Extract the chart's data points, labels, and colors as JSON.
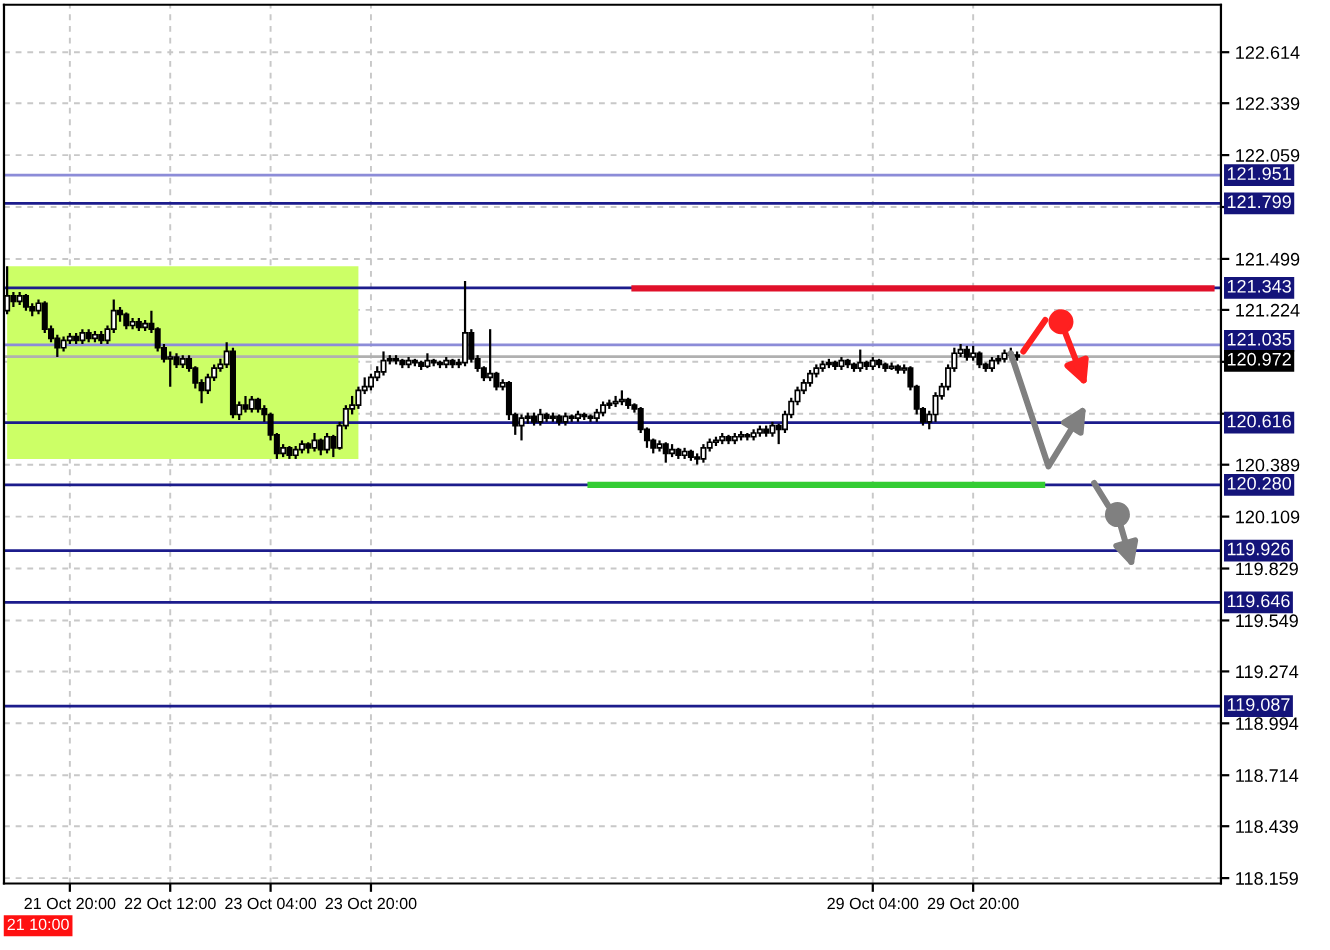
{
  "chart_data": {
    "type": "candlestick",
    "annotations": [
      "21 10:00"
    ],
    "categories": [
      null,
      null,
      null,
      null,
      null,
      null,
      null,
      null,
      null,
      null,
      "21 Oct 20:00",
      null,
      null,
      null,
      null,
      null,
      null,
      null,
      null,
      null,
      null,
      null,
      null,
      null,
      null,
      null,
      "22 Oct 12:00",
      null,
      null,
      null,
      null,
      null,
      null,
      null,
      null,
      null,
      null,
      null,
      null,
      null,
      null,
      null,
      "23 Oct 04:00",
      null,
      null,
      null,
      null,
      null,
      null,
      null,
      null,
      null,
      null,
      null,
      null,
      null,
      null,
      null,
      "23 Oct 20:00",
      null,
      null,
      null,
      null,
      null,
      null,
      null,
      null,
      null,
      null,
      null,
      null,
      null,
      null,
      null,
      null,
      null,
      null,
      null,
      null,
      null,
      null,
      null,
      null,
      null,
      null,
      null,
      null,
      null,
      null,
      null,
      null,
      null,
      null,
      null,
      null,
      null,
      null,
      null,
      null,
      null,
      null,
      null,
      null,
      null,
      null,
      null,
      null,
      null,
      null,
      null,
      null,
      null,
      null,
      null,
      null,
      null,
      null,
      null,
      null,
      null,
      null,
      null,
      null,
      null,
      null,
      null,
      null,
      null,
      null,
      null,
      null,
      null,
      null,
      null,
      null,
      null,
      null,
      null,
      "29 Oct 04:00",
      null,
      null,
      null,
      null,
      null,
      null,
      null,
      null,
      null,
      null,
      null,
      null,
      null,
      null,
      null,
      "29 Oct 20:00",
      null,
      null,
      null,
      null,
      null,
      null,
      null,
      null,
      null,
      null,
      null,
      null,
      null,
      null,
      null,
      null,
      null,
      null,
      null,
      null,
      null,
      null,
      null,
      null,
      null,
      null,
      null,
      null,
      null,
      null,
      null,
      null,
      null,
      null,
      null,
      null,
      null,
      null,
      null
    ],
    "ohlc": [
      [
        121.22,
        121.46,
        121.2,
        121.3
      ],
      [
        121.3,
        121.32,
        121.24,
        121.27
      ],
      [
        121.27,
        121.32,
        121.25,
        121.3
      ],
      [
        121.3,
        121.31,
        121.22,
        121.24
      ],
      [
        121.24,
        121.26,
        121.19,
        121.22
      ],
      [
        121.22,
        121.28,
        121.2,
        121.26
      ],
      [
        121.26,
        121.27,
        121.1,
        121.12
      ],
      [
        121.12,
        121.14,
        121.05,
        121.07
      ],
      [
        121.07,
        121.09,
        120.97,
        121.02
      ],
      [
        121.02,
        121.08,
        121.0,
        121.06
      ],
      [
        121.06,
        121.1,
        121.04,
        121.08
      ],
      [
        121.08,
        121.1,
        121.04,
        121.06
      ],
      [
        121.06,
        121.12,
        121.04,
        121.1
      ],
      [
        121.1,
        121.12,
        121.05,
        121.07
      ],
      [
        121.07,
        121.11,
        121.05,
        121.09
      ],
      [
        121.09,
        121.11,
        121.04,
        121.06
      ],
      [
        121.06,
        121.14,
        121.04,
        121.12
      ],
      [
        121.12,
        121.28,
        121.1,
        121.22
      ],
      [
        121.22,
        121.24,
        121.16,
        121.2
      ],
      [
        121.2,
        121.21,
        121.12,
        121.14
      ],
      [
        121.14,
        121.18,
        121.12,
        121.16
      ],
      [
        121.16,
        121.18,
        121.11,
        121.13
      ],
      [
        121.13,
        121.17,
        121.11,
        121.15
      ],
      [
        121.15,
        121.22,
        121.1,
        121.12
      ],
      [
        121.12,
        121.13,
        121.0,
        121.02
      ],
      [
        121.02,
        121.04,
        120.94,
        120.96
      ],
      [
        120.96,
        121.0,
        120.81,
        120.97
      ],
      [
        120.97,
        120.99,
        120.91,
        120.93
      ],
      [
        120.93,
        120.98,
        120.91,
        120.96
      ],
      [
        120.96,
        120.98,
        120.89,
        120.91
      ],
      [
        120.91,
        120.92,
        120.8,
        120.83
      ],
      [
        120.83,
        120.85,
        120.72,
        120.79
      ],
      [
        120.79,
        120.88,
        120.77,
        120.86
      ],
      [
        120.86,
        120.93,
        120.84,
        120.91
      ],
      [
        120.91,
        120.96,
        120.89,
        120.93
      ],
      [
        120.93,
        121.05,
        120.91,
        121.0
      ],
      [
        121.0,
        121.02,
        120.64,
        120.66
      ],
      [
        120.66,
        120.73,
        120.63,
        120.71
      ],
      [
        120.71,
        120.76,
        120.67,
        120.69
      ],
      [
        120.69,
        120.76,
        120.67,
        120.74
      ],
      [
        120.74,
        120.75,
        120.67,
        120.69
      ],
      [
        120.69,
        120.71,
        120.62,
        120.66
      ],
      [
        120.66,
        120.67,
        120.52,
        120.55
      ],
      [
        120.55,
        120.56,
        120.42,
        120.45
      ],
      [
        120.45,
        120.5,
        120.43,
        120.48
      ],
      [
        120.48,
        120.49,
        120.42,
        120.44
      ],
      [
        120.44,
        120.49,
        120.42,
        120.47
      ],
      [
        120.47,
        120.52,
        120.45,
        120.5
      ],
      [
        120.5,
        120.51,
        120.45,
        120.48
      ],
      [
        120.48,
        120.56,
        120.46,
        120.52
      ],
      [
        120.52,
        120.53,
        120.44,
        120.47
      ],
      [
        120.47,
        120.56,
        120.45,
        120.54
      ],
      [
        120.54,
        120.55,
        120.43,
        120.48
      ],
      [
        120.48,
        120.62,
        120.47,
        120.6
      ],
      [
        120.6,
        120.71,
        120.58,
        120.69
      ],
      [
        120.69,
        120.76,
        120.66,
        120.71
      ],
      [
        120.71,
        120.81,
        120.69,
        120.79
      ],
      [
        120.79,
        120.86,
        120.77,
        120.81
      ],
      [
        120.81,
        120.88,
        120.79,
        120.86
      ],
      [
        120.86,
        120.92,
        120.84,
        120.89
      ],
      [
        120.89,
        121.0,
        120.87,
        120.95
      ],
      [
        120.95,
        120.98,
        120.93,
        120.96
      ],
      [
        120.96,
        120.98,
        120.93,
        120.95
      ],
      [
        120.95,
        120.96,
        120.91,
        120.93
      ],
      [
        120.93,
        120.97,
        120.91,
        120.95
      ],
      [
        120.95,
        120.96,
        120.92,
        120.94
      ],
      [
        120.94,
        120.95,
        120.9,
        120.92
      ],
      [
        120.92,
        120.99,
        120.91,
        120.95
      ],
      [
        120.95,
        120.96,
        120.92,
        120.94
      ],
      [
        120.94,
        120.95,
        120.91,
        120.93
      ],
      [
        120.93,
        120.97,
        120.91,
        120.95
      ],
      [
        120.95,
        120.96,
        120.91,
        120.93
      ],
      [
        120.93,
        120.96,
        120.91,
        120.94
      ],
      [
        120.94,
        121.38,
        120.92,
        121.1
      ],
      [
        121.1,
        121.12,
        120.94,
        120.96
      ],
      [
        120.96,
        120.98,
        120.89,
        120.91
      ],
      [
        120.91,
        120.92,
        120.84,
        120.86
      ],
      [
        120.86,
        121.12,
        120.84,
        120.88
      ],
      [
        120.88,
        120.89,
        120.79,
        120.81
      ],
      [
        120.81,
        120.85,
        120.79,
        120.83
      ],
      [
        120.83,
        120.84,
        120.63,
        120.66
      ],
      [
        120.66,
        120.67,
        120.55,
        120.6
      ],
      [
        120.6,
        120.66,
        120.52,
        120.64
      ],
      [
        120.64,
        120.67,
        120.61,
        120.65
      ],
      [
        120.65,
        120.67,
        120.6,
        120.62
      ],
      [
        120.62,
        120.69,
        120.6,
        120.66
      ],
      [
        120.66,
        120.67,
        120.62,
        120.64
      ],
      [
        120.64,
        120.67,
        120.62,
        120.65
      ],
      [
        120.65,
        120.66,
        120.6,
        120.62
      ],
      [
        120.62,
        120.67,
        120.6,
        120.65
      ],
      [
        120.65,
        120.66,
        120.62,
        120.64
      ],
      [
        120.64,
        120.68,
        120.62,
        120.66
      ],
      [
        120.66,
        120.67,
        120.63,
        120.65
      ],
      [
        120.65,
        120.66,
        120.62,
        120.64
      ],
      [
        120.64,
        120.69,
        120.62,
        120.67
      ],
      [
        120.67,
        120.73,
        120.65,
        120.71
      ],
      [
        120.71,
        120.74,
        120.69,
        120.72
      ],
      [
        120.72,
        120.76,
        120.7,
        120.73
      ],
      [
        120.73,
        120.79,
        120.71,
        120.74
      ],
      [
        120.74,
        120.75,
        120.69,
        120.71
      ],
      [
        120.71,
        120.72,
        120.67,
        120.69
      ],
      [
        120.69,
        120.7,
        120.56,
        120.58
      ],
      [
        120.58,
        120.59,
        120.48,
        120.52
      ],
      [
        120.52,
        120.53,
        120.45,
        120.48
      ],
      [
        120.48,
        120.52,
        120.46,
        120.5
      ],
      [
        120.5,
        120.51,
        120.4,
        120.45
      ],
      [
        120.45,
        120.5,
        120.43,
        120.47
      ],
      [
        120.47,
        120.48,
        120.42,
        120.44
      ],
      [
        120.44,
        120.48,
        120.42,
        120.46
      ],
      [
        120.46,
        120.47,
        120.41,
        120.43
      ],
      [
        120.43,
        120.45,
        120.39,
        120.42
      ],
      [
        120.42,
        120.5,
        120.4,
        120.48
      ],
      [
        120.48,
        120.53,
        120.46,
        120.51
      ],
      [
        120.51,
        120.54,
        120.49,
        120.52
      ],
      [
        120.52,
        120.56,
        120.5,
        120.54
      ],
      [
        120.54,
        120.55,
        120.5,
        120.52
      ],
      [
        120.52,
        120.56,
        120.5,
        120.54
      ],
      [
        120.54,
        120.57,
        120.52,
        120.55
      ],
      [
        120.55,
        120.56,
        120.52,
        120.54
      ],
      [
        120.54,
        120.58,
        120.52,
        120.56
      ],
      [
        120.56,
        120.6,
        120.54,
        120.58
      ],
      [
        120.58,
        120.6,
        120.54,
        120.56
      ],
      [
        120.56,
        120.62,
        120.54,
        120.6
      ],
      [
        120.6,
        120.61,
        120.5,
        120.58
      ],
      [
        120.58,
        120.68,
        120.56,
        120.66
      ],
      [
        120.66,
        120.75,
        120.64,
        120.73
      ],
      [
        120.73,
        120.81,
        120.71,
        120.79
      ],
      [
        120.79,
        120.85,
        120.77,
        120.83
      ],
      [
        120.83,
        120.9,
        120.81,
        120.88
      ],
      [
        120.88,
        120.93,
        120.86,
        120.91
      ],
      [
        120.91,
        120.95,
        120.89,
        120.93
      ],
      [
        120.93,
        120.96,
        120.91,
        120.94
      ],
      [
        120.94,
        120.95,
        120.9,
        120.92
      ],
      [
        120.92,
        120.97,
        120.9,
        120.95
      ],
      [
        120.95,
        120.96,
        120.91,
        120.93
      ],
      [
        120.93,
        120.94,
        120.89,
        120.91
      ],
      [
        120.91,
        121.01,
        120.89,
        120.94
      ],
      [
        120.94,
        120.95,
        120.9,
        120.92
      ],
      [
        120.92,
        120.97,
        120.9,
        120.95
      ],
      [
        120.95,
        120.96,
        120.91,
        120.93
      ],
      [
        120.93,
        120.94,
        120.89,
        120.91
      ],
      [
        120.91,
        120.94,
        120.9,
        120.92
      ],
      [
        120.92,
        120.93,
        120.88,
        120.9
      ],
      [
        120.9,
        120.93,
        120.88,
        120.91
      ],
      [
        120.91,
        120.92,
        120.79,
        120.81
      ],
      [
        120.81,
        120.82,
        120.66,
        120.69
      ],
      [
        120.69,
        120.7,
        120.6,
        120.62
      ],
      [
        120.62,
        120.68,
        120.58,
        120.66
      ],
      [
        120.66,
        120.78,
        120.62,
        120.76
      ],
      [
        120.76,
        120.83,
        120.74,
        120.81
      ],
      [
        120.81,
        120.93,
        120.79,
        120.91
      ],
      [
        120.91,
        121.02,
        120.89,
        120.99
      ],
      [
        120.99,
        121.04,
        120.97,
        121.01
      ],
      [
        121.01,
        121.03,
        120.95,
        120.97
      ],
      [
        120.97,
        121.03,
        120.95,
        120.99
      ],
      [
        120.99,
        121.0,
        120.91,
        120.93
      ],
      [
        120.93,
        120.94,
        120.89,
        120.91
      ],
      [
        120.91,
        120.97,
        120.89,
        120.95
      ],
      [
        120.95,
        120.98,
        120.93,
        120.96
      ],
      [
        120.96,
        121.01,
        120.94,
        120.99
      ],
      [
        120.99,
        121.02,
        120.95,
        120.98
      ],
      [
        120.98,
        121.0,
        120.95,
        120.97
      ],
      null,
      null,
      null,
      null,
      null,
      null,
      null,
      null,
      null,
      null,
      null,
      null,
      null,
      null,
      null,
      null,
      null,
      null,
      null,
      null,
      null,
      null,
      null,
      null,
      null,
      null,
      null,
      null,
      null,
      null,
      null,
      null
    ],
    "series": [
      {
        "type": "line",
        "color": "#e0102a",
        "values": [
          null,
          null,
          null,
          null,
          null,
          null,
          null,
          null,
          null,
          null,
          null,
          null,
          null,
          null,
          null,
          null,
          null,
          null,
          null,
          null,
          null,
          null,
          null,
          null,
          null,
          null,
          null,
          null,
          null,
          null,
          null,
          null,
          null,
          null,
          null,
          null,
          null,
          null,
          null,
          null,
          null,
          null,
          null,
          null,
          null,
          null,
          null,
          null,
          null,
          null,
          null,
          null,
          null,
          null,
          null,
          null,
          null,
          null,
          null,
          null,
          null,
          null,
          null,
          null,
          null,
          null,
          null,
          null,
          null,
          null,
          null,
          null,
          null,
          null,
          null,
          null,
          null,
          null,
          null,
          null,
          null,
          null,
          null,
          null,
          null,
          null,
          null,
          null,
          null,
          null,
          null,
          null,
          null,
          null,
          null,
          null,
          null,
          null,
          null,
          null,
          121.34,
          121.34,
          121.34,
          121.34,
          121.34,
          121.34,
          121.34,
          121.34,
          121.34,
          121.34,
          121.34,
          121.34,
          121.34,
          121.34,
          121.34,
          121.34,
          121.34,
          121.34,
          121.34,
          121.34,
          121.34,
          121.34,
          121.34,
          121.34,
          121.34,
          121.34,
          121.34,
          121.34,
          121.34,
          121.34,
          121.34,
          121.34,
          121.34,
          121.34,
          121.34,
          121.34,
          121.34,
          121.34,
          121.34,
          121.34,
          121.34,
          121.34,
          121.34,
          121.34,
          121.34,
          121.34,
          121.34,
          121.34,
          121.34,
          121.34,
          121.34,
          121.34,
          121.34,
          121.34,
          121.34,
          121.34,
          121.34,
          121.34,
          121.34,
          121.34,
          121.34,
          121.34,
          121.34,
          121.34,
          121.34,
          121.34,
          121.34,
          121.34,
          121.34,
          121.34,
          121.34,
          121.34,
          121.34,
          121.34,
          121.34,
          121.34,
          121.34,
          121.34,
          121.34,
          121.34,
          121.34,
          121.34,
          121.34,
          121.34,
          121.34,
          121.34,
          121.34,
          121.34,
          121.34,
          121.34,
          121.34,
          121.34,
          121.34,
          null
        ]
      },
      {
        "type": "line",
        "color": "#33cc33",
        "values": [
          null,
          null,
          null,
          null,
          null,
          null,
          null,
          null,
          null,
          null,
          null,
          null,
          null,
          null,
          null,
          null,
          null,
          null,
          null,
          null,
          null,
          null,
          null,
          null,
          null,
          null,
          null,
          null,
          null,
          null,
          null,
          null,
          null,
          null,
          null,
          null,
          null,
          null,
          null,
          null,
          null,
          null,
          null,
          null,
          null,
          null,
          null,
          null,
          null,
          null,
          null,
          null,
          null,
          null,
          null,
          null,
          null,
          null,
          null,
          null,
          null,
          null,
          null,
          null,
          null,
          null,
          null,
          null,
          null,
          null,
          null,
          null,
          null,
          null,
          null,
          null,
          null,
          null,
          null,
          null,
          null,
          null,
          null,
          null,
          null,
          null,
          null,
          null,
          null,
          null,
          null,
          null,
          null,
          120.28,
          120.28,
          120.28,
          120.28,
          120.28,
          120.28,
          120.28,
          120.28,
          120.28,
          120.28,
          120.28,
          120.28,
          120.28,
          120.28,
          120.28,
          120.28,
          120.28,
          120.28,
          120.28,
          120.28,
          120.28,
          120.28,
          120.28,
          120.28,
          120.28,
          120.28,
          120.28,
          120.28,
          120.28,
          120.28,
          120.28,
          120.28,
          120.28,
          120.28,
          120.28,
          120.28,
          120.28,
          120.28,
          120.28,
          120.28,
          120.28,
          120.28,
          120.28,
          120.28,
          120.28,
          120.28,
          120.28,
          120.28,
          120.28,
          120.28,
          120.28,
          120.28,
          120.28,
          120.28,
          120.28,
          120.28,
          120.28,
          120.28,
          120.28,
          120.28,
          120.28,
          120.28,
          120.28,
          120.28,
          120.28,
          120.28,
          120.28,
          120.28,
          120.28,
          120.28,
          120.28,
          120.28,
          120.28,
          null,
          null,
          null,
          null,
          null,
          null,
          null,
          null,
          null,
          null,
          null,
          null,
          null,
          null,
          null,
          null,
          null,
          null,
          null,
          null,
          null,
          null,
          null,
          null,
          null,
          null,
          null,
          null
        ]
      }
    ],
    "ref_lines": [
      {
        "axis": "y",
        "value": 121.951,
        "label": "121.951",
        "color": "#8c8cd8"
      },
      {
        "axis": "y",
        "value": 121.799,
        "label": "121.799",
        "color": "#1c1c8c"
      },
      {
        "axis": "y",
        "value": 121.343,
        "label": "121.343",
        "color": "#1c1c8c"
      },
      {
        "axis": "y",
        "value": 121.035,
        "label": "121.035",
        "color": "#8c8cd8"
      },
      {
        "axis": "y",
        "value": 120.972,
        "label": "120.972",
        "color": "#b0b0b0"
      },
      {
        "axis": "y",
        "value": 120.616,
        "label": "120.616",
        "color": "#1c1c8c"
      },
      {
        "axis": "y",
        "value": 120.28,
        "label": "120.280",
        "color": "#1c1c8c"
      },
      {
        "axis": "y",
        "value": 119.926,
        "label": "119.926",
        "color": "#1c1c8c"
      },
      {
        "axis": "y",
        "value": 119.646,
        "label": "119.646",
        "color": "#1c1c8c"
      },
      {
        "axis": "y",
        "value": 119.087,
        "label": "119.087",
        "color": "#1c1c8c"
      }
    ],
    "ylim": [
      118.13,
      122.87
    ],
    "yticks": [
      {
        "value": 122.614,
        "label": "122.614"
      },
      {
        "value": 122.339,
        "label": "122.339"
      },
      {
        "value": 122.059,
        "label": "122.059"
      },
      {
        "value": 121.779,
        "label": null
      },
      {
        "value": 121.499,
        "label": "121.499"
      },
      {
        "value": 121.224,
        "label": "121.224"
      },
      {
        "value": 120.944,
        "label": null
      },
      {
        "value": 120.664,
        "label": null
      },
      {
        "value": 120.389,
        "label": "120.389"
      },
      {
        "value": 120.109,
        "label": "120.109"
      },
      {
        "value": 119.829,
        "label": "119.829"
      },
      {
        "value": 119.549,
        "label": "119.549"
      },
      {
        "value": 119.274,
        "label": "119.274"
      },
      {
        "value": 118.994,
        "label": "118.994"
      },
      {
        "value": 118.714,
        "label": "118.714"
      },
      {
        "value": 118.439,
        "label": "118.439"
      },
      {
        "value": 118.159,
        "label": "118.159"
      }
    ],
    "grid": true
  }
}
